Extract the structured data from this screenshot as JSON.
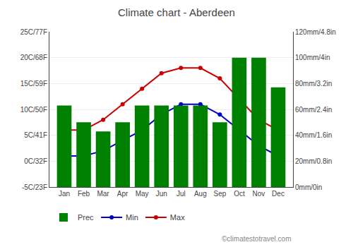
{
  "chart_data": {
    "type": "bar",
    "title": "Climate chart - Aberdeen",
    "categories": [
      "Jan",
      "Feb",
      "Mar",
      "Apr",
      "May",
      "Jun",
      "Jul",
      "Aug",
      "Sep",
      "Oct",
      "Nov",
      "Dec"
    ],
    "series": [
      {
        "name": "Prec",
        "type": "bar",
        "axis": "y2",
        "color": "#008000",
        "values": [
          63,
          50,
          43,
          50,
          63,
          63,
          63,
          63,
          50,
          100,
          100,
          77
        ]
      },
      {
        "name": "Min",
        "type": "line",
        "marker": "circle",
        "color": "#0000cc",
        "values": [
          1,
          1,
          2,
          4,
          6,
          9,
          11,
          11,
          9,
          6,
          3,
          1
        ]
      },
      {
        "name": "Max",
        "type": "line",
        "marker": "circle",
        "color": "#cc0000",
        "values": [
          6,
          6,
          8,
          11,
          14,
          17,
          18,
          18,
          16,
          12,
          8,
          6
        ]
      }
    ],
    "ylim": [
      -5,
      25
    ],
    "yticks": [
      {
        "value": -5,
        "label": "-5C/23F"
      },
      {
        "value": 0,
        "label": "0C/32F"
      },
      {
        "value": 5,
        "label": "5C/41F"
      },
      {
        "value": 10,
        "label": "10C/50F"
      },
      {
        "value": 15,
        "label": "15C/59F"
      },
      {
        "value": 20,
        "label": "20C/68F"
      },
      {
        "value": 25,
        "label": "25C/77F"
      }
    ],
    "y2lim": [
      0,
      120
    ],
    "y2ticks": [
      {
        "value": 0,
        "label": "0mm/0in"
      },
      {
        "value": 20,
        "label": "20mm/0.8in"
      },
      {
        "value": 40,
        "label": "40mm/1.6in"
      },
      {
        "value": 60,
        "label": "60mm/2.4in"
      },
      {
        "value": 80,
        "label": "80mm/3.2in"
      },
      {
        "value": 100,
        "label": "100mm/4in"
      },
      {
        "value": 120,
        "label": "120mm/4.8in"
      }
    ],
    "grid": true,
    "legend": "lower left",
    "annotations": [
      "©climatestotravel.com"
    ]
  }
}
